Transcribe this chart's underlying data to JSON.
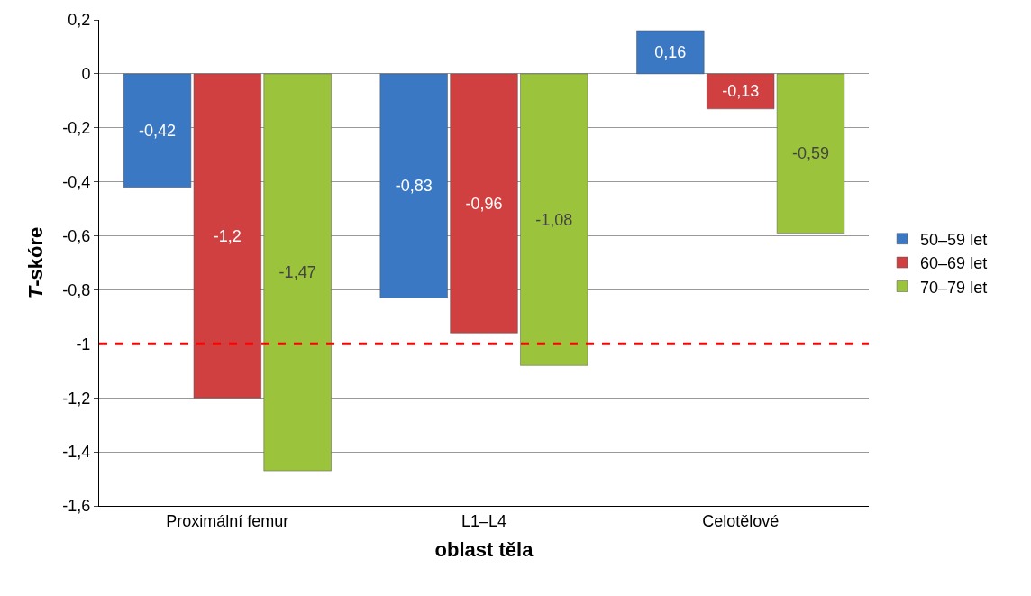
{
  "chart_data": {
    "type": "bar",
    "xlabel": "oblast těla",
    "ylabel": "T-skóre",
    "categories": [
      "Proximální femur",
      "L1–L4",
      "Celotělové"
    ],
    "series": [
      {
        "name": "50–59 let",
        "color": "#3a78c3",
        "values": [
          -0.42,
          -0.83,
          0.16
        ],
        "value_labels": [
          "-0,42",
          "-0,83",
          "0,16"
        ]
      },
      {
        "name": "60–69 let",
        "color": "#d04040",
        "values": [
          -1.2,
          -0.96,
          -0.13
        ],
        "value_labels": [
          "-1,2",
          "-0,96",
          "-0,13"
        ]
      },
      {
        "name": "70–79 let",
        "color": "#9bc43c",
        "values": [
          -1.47,
          -1.08,
          -0.59
        ],
        "value_labels": [
          "-1,47",
          "-1,08",
          "-0,59"
        ]
      }
    ],
    "ylim": [
      -1.6,
      0.2
    ],
    "yticks": [
      {
        "value": -1.6,
        "label": "-1,6"
      },
      {
        "value": -1.4,
        "label": "-1,4"
      },
      {
        "value": -1.2,
        "label": "-1,2"
      },
      {
        "value": -1,
        "label": "-1"
      },
      {
        "value": -0.8,
        "label": "-0,8"
      },
      {
        "value": -0.6,
        "label": "-0,6"
      },
      {
        "value": -0.4,
        "label": "-0,4"
      },
      {
        "value": -0.2,
        "label": "-0,2"
      },
      0,
      {
        "value": 0.2,
        "label": "0,2"
      }
    ],
    "ref_lines": [
      {
        "axis": "y",
        "value": -1,
        "color": "#ff0000",
        "line_style": "dashed"
      }
    ],
    "grid": "y",
    "legend": "right"
  }
}
